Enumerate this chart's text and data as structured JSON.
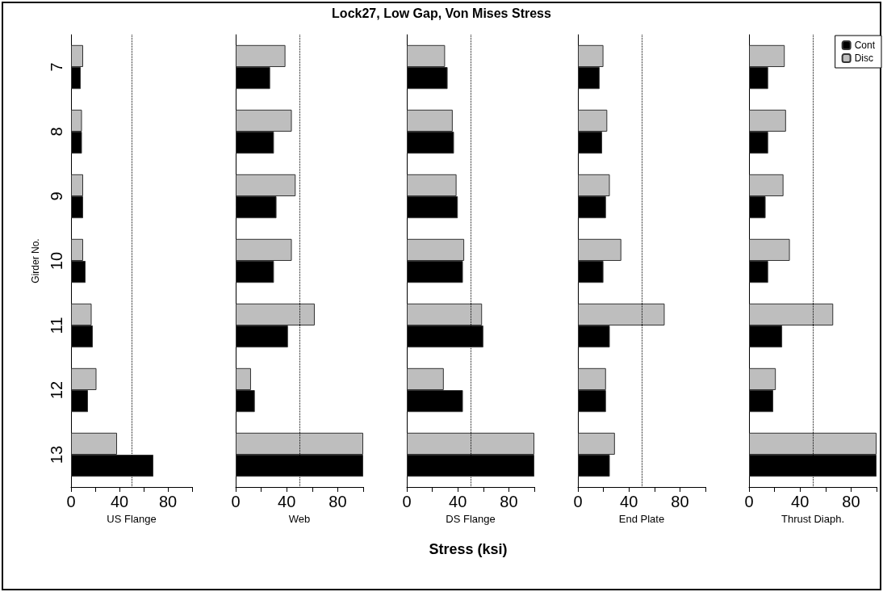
{
  "chart_data": [
    {
      "type": "bar",
      "orientation": "horizontal",
      "ylabel": "Girder No.",
      "xlabel": "US Flange",
      "categories": [
        "7",
        "8",
        "9",
        "10",
        "11",
        "12",
        "13"
      ],
      "series": [
        {
          "color": "#000000",
          "values": [
            8,
            9,
            10,
            12,
            18,
            14,
            68
          ]
        },
        {
          "color": "#bebebe",
          "values": [
            10,
            9,
            10,
            10,
            17,
            21,
            38
          ]
        }
      ],
      "xlim": [
        0,
        100
      ],
      "xticks": [
        0,
        {
          "value": 20,
          "label": null
        },
        40,
        {
          "value": 60,
          "label": null
        },
        80,
        {
          "value": 100,
          "label": null
        }
      ],
      "ref_lines": [
        {
          "axis": "x",
          "value": 50,
          "line_style": "dotted",
          "color": "#000000"
        }
      ],
      "legend": false
    },
    {
      "type": "bar",
      "orientation": "horizontal",
      "xlabel": "Web",
      "categories": [
        "7",
        "8",
        "9",
        "10",
        "11",
        "12",
        "13"
      ],
      "tick_labels": "x",
      "series": [
        {
          "color": "#000000",
          "values": [
            27,
            30,
            32,
            30,
            41,
            15,
            100
          ]
        },
        {
          "color": "#bebebe",
          "values": [
            39,
            44,
            47,
            44,
            62,
            12,
            100
          ]
        }
      ],
      "xlim": [
        0,
        100
      ],
      "xticks": [
        0,
        {
          "value": 20,
          "label": null
        },
        40,
        {
          "value": 60,
          "label": null
        },
        80,
        {
          "value": 100,
          "label": null
        }
      ],
      "ref_lines": [
        {
          "axis": "x",
          "value": 50,
          "line_style": "dotted",
          "color": "#000000"
        }
      ],
      "legend": false
    },
    {
      "type": "bar",
      "orientation": "horizontal",
      "title": "Lock27, Low Gap, Von Mises Stress",
      "annotations": [
        "Stress (ksi)"
      ],
      "xlabel": "DS Flange",
      "categories": [
        "7",
        "8",
        "9",
        "10",
        "11",
        "12",
        "13"
      ],
      "tick_labels": "x",
      "series": [
        {
          "color": "#000000",
          "values": [
            32,
            37,
            40,
            44,
            60,
            44,
            100
          ]
        },
        {
          "color": "#bebebe",
          "values": [
            30,
            36,
            39,
            45,
            59,
            29,
            100
          ]
        }
      ],
      "xlim": [
        0,
        100
      ],
      "xticks": [
        0,
        {
          "value": 20,
          "label": null
        },
        40,
        {
          "value": 60,
          "label": null
        },
        80,
        {
          "value": 100,
          "label": null
        }
      ],
      "ref_lines": [
        {
          "axis": "x",
          "value": 50,
          "line_style": "dotted",
          "color": "#000000"
        }
      ],
      "legend": false
    },
    {
      "type": "bar",
      "orientation": "horizontal",
      "xlabel": "End Plate",
      "categories": [
        "7",
        "8",
        "9",
        "10",
        "11",
        "12",
        "13"
      ],
      "tick_labels": "x",
      "series": [
        {
          "color": "#000000",
          "values": [
            17,
            19,
            22,
            20,
            25,
            22,
            25
          ]
        },
        {
          "color": "#bebebe",
          "values": [
            20,
            23,
            25,
            34,
            68,
            22,
            29
          ]
        }
      ],
      "xlim": [
        0,
        100
      ],
      "xticks": [
        0,
        {
          "value": 20,
          "label": null
        },
        40,
        {
          "value": 60,
          "label": null
        },
        80,
        {
          "value": 100,
          "label": null
        }
      ],
      "ref_lines": [
        {
          "axis": "x",
          "value": 50,
          "line_style": "dotted",
          "color": "#000000"
        }
      ],
      "legend": false
    },
    {
      "type": "bar",
      "orientation": "horizontal",
      "xlabel": "Thrust Diaph.",
      "categories": [
        "7",
        "8",
        "9",
        "10",
        "11",
        "12",
        "13"
      ],
      "tick_labels": "x",
      "series": [
        {
          "name": "Cont",
          "color": "#000000",
          "values": [
            15,
            15,
            13,
            15,
            26,
            19,
            100
          ]
        },
        {
          "name": "Disc",
          "color": "#bebebe",
          "values": [
            28,
            29,
            27,
            32,
            66,
            21,
            100
          ]
        }
      ],
      "xlim": [
        0,
        100
      ],
      "xticks": [
        0,
        {
          "value": 20,
          "label": null
        },
        40,
        {
          "value": 60,
          "label": null
        },
        80,
        {
          "value": 100,
          "label": null
        }
      ],
      "ref_lines": [
        {
          "axis": "x",
          "value": 50,
          "line_style": "dotted",
          "color": "#000000"
        }
      ],
      "legend": "top right"
    }
  ]
}
